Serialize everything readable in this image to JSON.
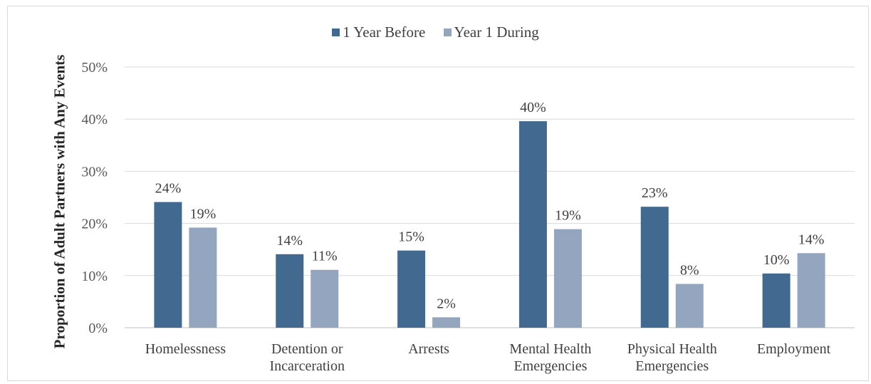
{
  "chart_data": {
    "type": "bar",
    "title": "",
    "xlabel": "",
    "ylabel": "Proportion of Adult Partners with Any Events",
    "ylim": [
      0,
      50
    ],
    "yticks": [
      "0%",
      "10%",
      "20%",
      "30%",
      "40%",
      "50%"
    ],
    "grid": true,
    "legend_position": "top",
    "categories": [
      [
        "Homelessness"
      ],
      [
        "Detention or",
        "Incarceration"
      ],
      [
        "Arrests"
      ],
      [
        "Mental Health",
        "Emergencies"
      ],
      [
        "Physical Health",
        "Emergencies"
      ],
      [
        "Employment"
      ]
    ],
    "series": [
      {
        "name": "1 Year Before",
        "color": "#42698f",
        "values": [
          24.1,
          14.1,
          14.8,
          39.6,
          23.2,
          10.4
        ],
        "labels": [
          "24%",
          "14%",
          "15%",
          "40%",
          "23%",
          "10%"
        ]
      },
      {
        "name": "Year 1 During",
        "color": "#94a6bf",
        "values": [
          19.2,
          11.1,
          2.0,
          18.9,
          8.4,
          14.3
        ],
        "labels": [
          "19%",
          "11%",
          "2%",
          "19%",
          "8%",
          "14%"
        ]
      }
    ]
  }
}
